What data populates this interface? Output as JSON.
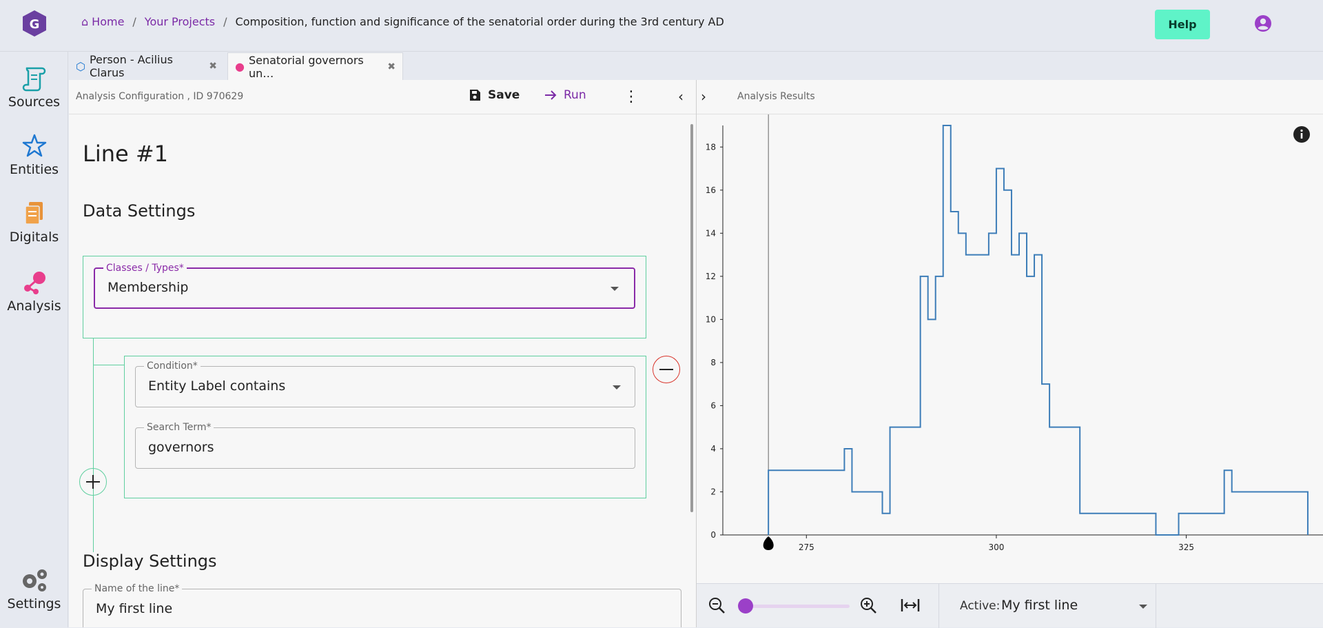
{
  "breadcrumb": {
    "home": "Home",
    "projects": "Your Projects",
    "current": "Composition, function and significance of the senatorial order during the 3rd century AD",
    "separator": "/"
  },
  "header": {
    "help_label": "Help"
  },
  "sidebar": {
    "items": [
      {
        "label": "Sources",
        "icon": "scroll-icon"
      },
      {
        "label": "Entities",
        "icon": "star-icon"
      },
      {
        "label": "Digitals",
        "icon": "files-icon"
      },
      {
        "label": "Analysis",
        "icon": "network-icon"
      },
      {
        "label": "Settings",
        "icon": "gears-icon"
      }
    ]
  },
  "tabs": [
    {
      "label": "Person - Acilius Clarus",
      "close": "✖"
    },
    {
      "label": "Senatorial governors un…",
      "close": "✖"
    }
  ],
  "config": {
    "title": "Analysis Configuration , ID 970629",
    "save_label": "Save",
    "run_label": "Run",
    "more": "⋮",
    "collapse": "‹",
    "line_title": "Line #1",
    "data_settings": "Data Settings",
    "classes_legend": "Classes / Types*",
    "classes_value": "Membership",
    "condition_legend": "Condition*",
    "condition_value": "Entity Label contains",
    "search_legend": "Search Term*",
    "search_value": "governors",
    "display_settings": "Display Settings",
    "name_legend": "Name of the line*",
    "name_value": "My first line"
  },
  "results": {
    "expand": "›",
    "title": "Analysis Results",
    "active_label": "Active:",
    "active_value": "My first line"
  },
  "colors": {
    "accent": "#7b2aa6",
    "green": "#5fcf9f",
    "line": "#3d7db8",
    "help_bg": "#5ff3c8"
  },
  "chart_data": {
    "type": "line",
    "step": true,
    "title": "",
    "xlabel": "",
    "ylabel": "",
    "xticks": [
      275,
      300,
      325
    ],
    "yticks": [
      0,
      2,
      4,
      6,
      8,
      10,
      12,
      14,
      16,
      18
    ],
    "xlim": [
      264,
      343
    ],
    "ylim": [
      0,
      19
    ],
    "x": [
      270,
      280,
      281,
      282,
      284,
      285,
      286,
      290,
      291,
      292,
      293,
      294,
      295,
      296,
      298,
      299,
      300,
      301,
      302,
      303,
      304,
      305,
      306,
      307,
      311,
      321,
      324,
      330,
      331,
      341
    ],
    "values": [
      3,
      4,
      2,
      2,
      2,
      1,
      5,
      12,
      10,
      12,
      19,
      15,
      14,
      13,
      13,
      14,
      17,
      16,
      13,
      14,
      12,
      13,
      7,
      5,
      1,
      0,
      1,
      3,
      2,
      0
    ]
  }
}
